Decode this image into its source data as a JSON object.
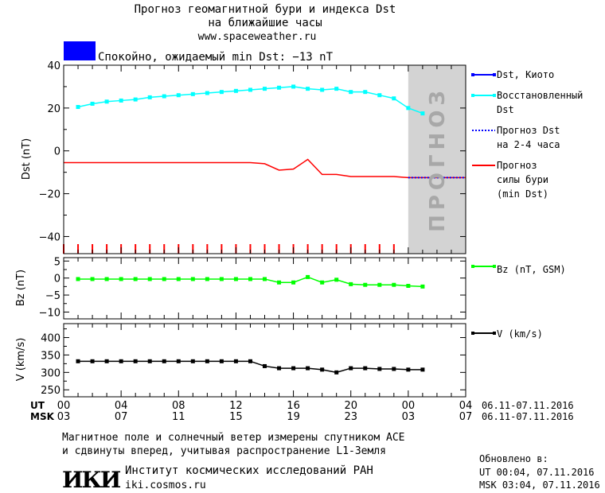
{
  "header": {
    "title_line1": "Прогноз геомагнитной бури и индекса Dst",
    "title_line2": "на ближайшие часы",
    "url": "www.spaceweather.ru",
    "status_color": "#0000ff",
    "status_text": "Спокойно, ожидаемый min Dst: −13 nT"
  },
  "legend": {
    "dst_kyoto": "Dst, Киото",
    "restored_1": "Восстановленный",
    "restored_2": "Dst",
    "forecast_dst_1": "Прогноз Dst",
    "forecast_dst_2": "на 2-4 часа",
    "storm_1": "Прогноз",
    "storm_2": "силы бури",
    "storm_3": "(min Dst)",
    "bz": "Bz (nT, GSM)",
    "v": "V (km/s)"
  },
  "forecast_label": "ПРОГНОЗ",
  "time_axis": {
    "ut_label": "UT",
    "msk_label": "MSK",
    "ut_ticks": [
      "00",
      "04",
      "08",
      "12",
      "16",
      "20",
      "00",
      "04"
    ],
    "msk_ticks": [
      "03",
      "07",
      "11",
      "15",
      "19",
      "23",
      "03",
      "07"
    ],
    "ut_range": "06.11-07.11.2016",
    "msk_range": "06.11-07.11.2016"
  },
  "footer": {
    "note_1": "Магнитное поле и солнечный ветер измерены спутником ACE",
    "note_2": "и сдвинуты вперед, учитывая распространение L1-Земля",
    "institute": "Институт космических исследований РАН",
    "site": "iki.cosmos.ru",
    "logo_text": "ИКИ",
    "updated_label": "Обновлено в:",
    "updated_ut": "UT   00:04, 07.11.2016",
    "updated_msk": "MSK 03:04, 07.11.2016"
  },
  "chart_data": [
    {
      "type": "line",
      "ylabel": "Dst (nT)",
      "ylim": [
        -48,
        40
      ],
      "xlim": [
        0,
        28
      ],
      "yticks": [
        40,
        20,
        0,
        -20,
        -40
      ],
      "forecast_region": [
        24,
        28
      ],
      "series": [
        {
          "name": "Восстановленный Dst",
          "color": "#00ffff",
          "marker": "square",
          "x": [
            1,
            2,
            3,
            4,
            5,
            6,
            7,
            8,
            9,
            10,
            11,
            12,
            13,
            14,
            15,
            16,
            17,
            18,
            19,
            20,
            21,
            22,
            23,
            24,
            25
          ],
          "y": [
            20.5,
            22,
            23,
            23.5,
            24,
            25,
            25.5,
            26,
            26.5,
            27,
            27.5,
            28,
            28.5,
            29,
            29.5,
            30,
            29,
            28.5,
            29,
            27.5,
            27.5,
            26,
            24.5,
            20,
            17.5
          ]
        },
        {
          "name": "Прогноз силы бури",
          "color": "#ff0000",
          "x": [
            0,
            13,
            14,
            15,
            16,
            17,
            18,
            19,
            20,
            21,
            22,
            23,
            24,
            28
          ],
          "y": [
            -5.5,
            -5.5,
            -6,
            -9,
            -8.5,
            -4,
            -11,
            -11,
            -12,
            -12,
            -12,
            -12,
            -12.5,
            -12.5
          ]
        },
        {
          "name": "Прогноз Dst",
          "color": "#0000ff",
          "dashed": true,
          "x": [
            24,
            28
          ],
          "y": [
            -12.5,
            -12.5
          ]
        }
      ]
    },
    {
      "type": "line",
      "ylabel": "Bz (nT)",
      "ylim": [
        -12,
        6
      ],
      "xlim": [
        0,
        28
      ],
      "yticks": [
        5,
        0,
        -5,
        -10
      ],
      "series": [
        {
          "name": "Bz (nT, GSM)",
          "color": "#00ff00",
          "marker": "square",
          "x": [
            1,
            2,
            3,
            4,
            5,
            6,
            7,
            8,
            9,
            10,
            11,
            12,
            13,
            14,
            15,
            16,
            17,
            18,
            19,
            20,
            21,
            22,
            23,
            24,
            25
          ],
          "y": [
            -0.3,
            -0.3,
            -0.3,
            -0.3,
            -0.3,
            -0.3,
            -0.3,
            -0.3,
            -0.3,
            -0.3,
            -0.3,
            -0.3,
            -0.3,
            -0.3,
            -1.3,
            -1.3,
            0.3,
            -1.3,
            -0.5,
            -1.8,
            -2,
            -2,
            -2,
            -2.3,
            -2.5
          ]
        }
      ]
    },
    {
      "type": "line",
      "ylabel": "V (km/s)",
      "ylim": [
        230,
        440
      ],
      "xlim": [
        0,
        28
      ],
      "yticks": [
        400,
        350,
        300,
        250
      ],
      "series": [
        {
          "name": "V (km/s)",
          "color": "#000000",
          "marker": "square",
          "x": [
            1,
            2,
            3,
            4,
            5,
            6,
            7,
            8,
            9,
            10,
            11,
            12,
            13,
            14,
            15,
            16,
            17,
            18,
            19,
            20,
            21,
            22,
            23,
            24,
            25
          ],
          "y": [
            332,
            332,
            332,
            332,
            332,
            332,
            332,
            332,
            332,
            332,
            332,
            332,
            332,
            318,
            312,
            312,
            312,
            308,
            300,
            312,
            312,
            310,
            310,
            308,
            308
          ]
        }
      ]
    }
  ]
}
